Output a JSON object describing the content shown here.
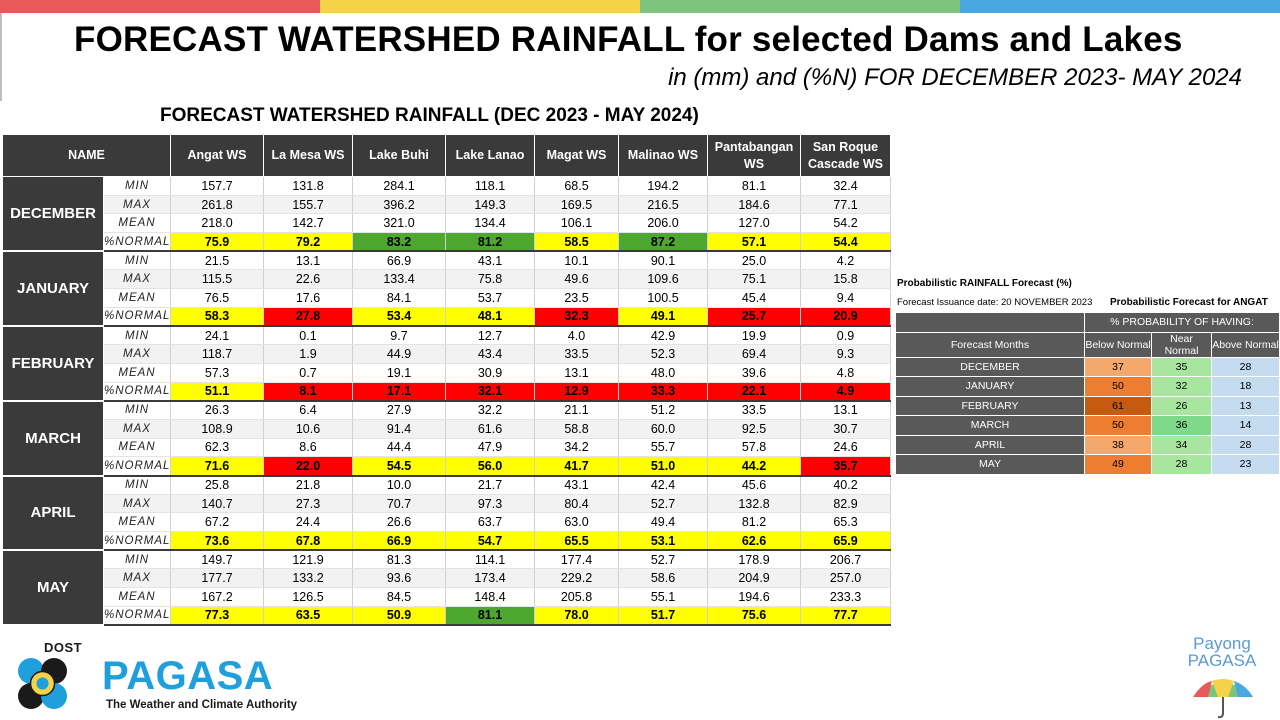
{
  "top_colors": [
    "#e85a5a",
    "#f4d34b",
    "#7fc47e",
    "#4aa8e0"
  ],
  "header": {
    "title": "FORECAST WATERSHED RAINFALL  for selected Dams and Lakes",
    "subtitle": "in (mm) and (%N) FOR DECEMBER 2023- MAY 2024"
  },
  "table": {
    "title": "FORECAST WATERSHED RAINFALL (DEC 2023 - MAY 2024)",
    "columns": {
      "name": "NAME",
      "sites": [
        "Angat WS",
        "La Mesa WS",
        "Lake Buhi",
        "Lake Lanao",
        "Magat WS",
        "Malinao WS",
        "Pantabangan WS",
        "San Roque Cascade WS"
      ]
    },
    "stat_labels": [
      "MIN",
      "MAX",
      "MEAN",
      "%NORMAL"
    ],
    "months": [
      {
        "name": "DECEMBER",
        "min": [
          "157.7",
          "131.8",
          "284.1",
          "118.1",
          "68.5",
          "194.2",
          "81.1",
          "32.4"
        ],
        "max": [
          "261.8",
          "155.7",
          "396.2",
          "149.3",
          "169.5",
          "216.5",
          "184.6",
          "77.1"
        ],
        "mean": [
          "218.0",
          "142.7",
          "321.0",
          "134.4",
          "106.1",
          "206.0",
          "127.0",
          "54.2"
        ],
        "normal": [
          "75.9",
          "79.2",
          "83.2",
          "81.2",
          "58.5",
          "87.2",
          "57.1",
          "54.4"
        ],
        "normal_class": [
          "below",
          "below",
          "near",
          "near",
          "below",
          "near",
          "below",
          "below"
        ]
      },
      {
        "name": "JANUARY",
        "min": [
          "21.5",
          "13.1",
          "66.9",
          "43.1",
          "10.1",
          "90.1",
          "25.0",
          "4.2"
        ],
        "max": [
          "115.5",
          "22.6",
          "133.4",
          "75.8",
          "49.6",
          "109.6",
          "75.1",
          "15.8"
        ],
        "mean": [
          "76.5",
          "17.6",
          "84.1",
          "53.7",
          "23.5",
          "100.5",
          "45.4",
          "9.4"
        ],
        "normal": [
          "58.3",
          "27.8",
          "53.4",
          "48.1",
          "32.3",
          "49.1",
          "25.7",
          "20.9"
        ],
        "normal_class": [
          "below",
          "way-below",
          "below",
          "below",
          "way-below",
          "below",
          "way-below",
          "way-below"
        ]
      },
      {
        "name": "FEBRUARY",
        "min": [
          "24.1",
          "0.1",
          "9.7",
          "12.7",
          "4.0",
          "42.9",
          "19.9",
          "0.9"
        ],
        "max": [
          "118.7",
          "1.9",
          "44.9",
          "43.4",
          "33.5",
          "52.3",
          "69.4",
          "9.3"
        ],
        "mean": [
          "57.3",
          "0.7",
          "19.1",
          "30.9",
          "13.1",
          "48.0",
          "39.6",
          "4.8"
        ],
        "normal": [
          "51.1",
          "8.1",
          "17.1",
          "32.1",
          "12.9",
          "33.3",
          "22.1",
          "4.9"
        ],
        "normal_class": [
          "below",
          "way-below",
          "way-below",
          "way-below",
          "way-below",
          "way-below",
          "way-below",
          "way-below"
        ]
      },
      {
        "name": "MARCH",
        "min": [
          "26.3",
          "6.4",
          "27.9",
          "32.2",
          "21.1",
          "51.2",
          "33.5",
          "13.1"
        ],
        "max": [
          "108.9",
          "10.6",
          "91.4",
          "61.6",
          "58.8",
          "60.0",
          "92.5",
          "30.7"
        ],
        "mean": [
          "62.3",
          "8.6",
          "44.4",
          "47.9",
          "34.2",
          "55.7",
          "57.8",
          "24.6"
        ],
        "normal": [
          "71.6",
          "22.0",
          "54.5",
          "56.0",
          "41.7",
          "51.0",
          "44.2",
          "35.7"
        ],
        "normal_class": [
          "below",
          "way-below",
          "below",
          "below",
          "below",
          "below",
          "below",
          "way-below"
        ]
      },
      {
        "name": "APRIL",
        "min": [
          "25.8",
          "21.8",
          "10.0",
          "21.7",
          "43.1",
          "42.4",
          "45.6",
          "40.2"
        ],
        "max": [
          "140.7",
          "27.3",
          "70.7",
          "97.3",
          "80.4",
          "52.7",
          "132.8",
          "82.9"
        ],
        "mean": [
          "67.2",
          "24.4",
          "26.6",
          "63.7",
          "63.0",
          "49.4",
          "81.2",
          "65.3"
        ],
        "normal": [
          "73.6",
          "67.8",
          "66.9",
          "54.7",
          "65.5",
          "53.1",
          "62.6",
          "65.9"
        ],
        "normal_class": [
          "below",
          "below",
          "below",
          "below",
          "below",
          "below",
          "below",
          "below"
        ]
      },
      {
        "name": "MAY",
        "min": [
          "149.7",
          "121.9",
          "81.3",
          "114.1",
          "177.4",
          "52.7",
          "178.9",
          "206.7"
        ],
        "max": [
          "177.7",
          "133.2",
          "93.6",
          "173.4",
          "229.2",
          "58.6",
          "204.9",
          "257.0"
        ],
        "mean": [
          "167.2",
          "126.5",
          "84.5",
          "148.4",
          "205.8",
          "55.1",
          "194.6",
          "233.3"
        ],
        "normal": [
          "77.3",
          "63.5",
          "50.9",
          "81.1",
          "78.0",
          "51.7",
          "75.6",
          "77.7"
        ],
        "normal_class": [
          "below",
          "below",
          "below",
          "near",
          "below",
          "below",
          "below",
          "below"
        ]
      }
    ],
    "colors": {
      "below": "#ffff00",
      "way-below": "#ff0000",
      "near": "#4ea72e"
    }
  },
  "probabilistic": {
    "title": "Probabilistic RAINFALL Forecast (%)",
    "issuance": "Forecast Issuance date: 20 NOVEMBER 2023",
    "subtitle": "Probabilistic Forecast for ANGAT",
    "header_group": "% PROBABILITY  OF HAVING:",
    "header_months": "Forecast Months",
    "header_cols": [
      "Below Normal",
      "Near Normal",
      "Above Normal"
    ],
    "rows": [
      {
        "month": "DECEMBER",
        "values": [
          "37",
          "35",
          "28"
        ]
      },
      {
        "month": "JANUARY",
        "values": [
          "50",
          "32",
          "18"
        ]
      },
      {
        "month": "FEBRUARY",
        "values": [
          "61",
          "26",
          "13"
        ]
      },
      {
        "month": "MARCH",
        "values": [
          "50",
          "36",
          "14"
        ]
      },
      {
        "month": "APRIL",
        "values": [
          "38",
          "34",
          "28"
        ]
      },
      {
        "month": "MAY",
        "values": [
          "49",
          "28",
          "23"
        ]
      }
    ]
  },
  "logo": {
    "dost": "DOST",
    "pagasa": "PAGASA",
    "tagline": "The Weather and Climate Authority",
    "payong": "Payong PAGASA"
  }
}
